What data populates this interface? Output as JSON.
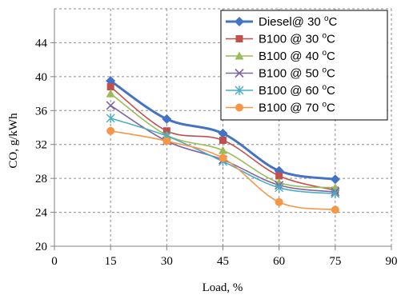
{
  "chart_data": {
    "type": "line",
    "xlabel": "Load, %",
    "ylabel": "CO, g/kWh",
    "xlim": [
      0,
      90
    ],
    "ylim": [
      20,
      48
    ],
    "xticks": [
      0,
      15,
      30,
      45,
      60,
      75,
      90
    ],
    "yticks": [
      20,
      24,
      28,
      32,
      36,
      40,
      44
    ],
    "grid": "dashed",
    "legend_position": "top-right",
    "x": [
      15,
      30,
      45,
      60,
      75
    ],
    "series": [
      {
        "name": "Diesel@ 30 °C",
        "name_parts": [
          "Diesel@ 30 ",
          "o",
          "C"
        ],
        "color": "#4472C4",
        "marker": "diamond",
        "values": [
          39.5,
          35.0,
          33.3,
          28.9,
          27.9
        ]
      },
      {
        "name": "B100 @ 30 °C",
        "name_parts": [
          "B100 @ 30 ",
          "o",
          "C"
        ],
        "color": "#C0504D",
        "marker": "square",
        "values": [
          38.8,
          33.6,
          32.5,
          28.3,
          26.6
        ]
      },
      {
        "name": "B100 @ 40 °C",
        "name_parts": [
          "B100 @ 40 ",
          "o",
          "C"
        ],
        "color": "#9BBB59",
        "marker": "triangle",
        "values": [
          38.0,
          33.1,
          31.3,
          27.5,
          26.9
        ]
      },
      {
        "name": "B100 @ 50 °C",
        "name_parts": [
          "B100 @ 50 ",
          "o",
          "C"
        ],
        "color": "#8064A2",
        "marker": "x",
        "values": [
          36.6,
          32.4,
          30.2,
          27.2,
          26.4
        ]
      },
      {
        "name": "B100 @ 60 °C",
        "name_parts": [
          "B100 @ 60 ",
          "o",
          "C"
        ],
        "color": "#4BACC6",
        "marker": "star",
        "values": [
          35.1,
          33.0,
          30.0,
          26.9,
          26.2
        ]
      },
      {
        "name": "B100 @ 70 °C",
        "name_parts": [
          "B100 @ 70 ",
          "o",
          "C"
        ],
        "color": "#F79646",
        "marker": "circle",
        "values": [
          33.6,
          32.4,
          30.4,
          25.2,
          24.3
        ]
      }
    ]
  }
}
